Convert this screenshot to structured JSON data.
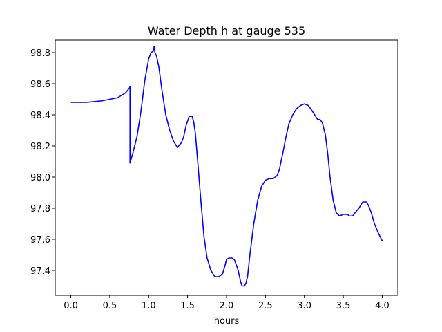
{
  "chart_data": {
    "type": "line",
    "title": "Water Depth h at gauge 535",
    "xlabel": "hours",
    "ylabel": "",
    "xlim": [
      -0.2,
      4.2
    ],
    "ylim": [
      97.24,
      98.88
    ],
    "xticks": [
      0.0,
      0.5,
      1.0,
      1.5,
      2.0,
      2.5,
      3.0,
      3.5,
      4.0
    ],
    "xtick_labels": [
      "0.0",
      "0.5",
      "1.0",
      "1.5",
      "2.0",
      "2.5",
      "3.0",
      "3.5",
      "4.0"
    ],
    "yticks": [
      97.4,
      97.6,
      97.8,
      98.0,
      98.2,
      98.4,
      98.6,
      98.8
    ],
    "ytick_labels": [
      "97.4",
      "97.6",
      "97.8",
      "98.0",
      "98.2",
      "98.4",
      "98.6",
      "98.8"
    ],
    "grid": false,
    "series": [
      {
        "color": "#0000ff",
        "x": [
          0.0,
          0.2,
          0.4,
          0.6,
          0.7,
          0.75,
          0.76,
          0.76,
          0.8,
          0.85,
          0.9,
          0.95,
          1.0,
          1.03,
          1.06,
          1.07,
          1.08,
          1.1,
          1.13,
          1.17,
          1.22,
          1.27,
          1.32,
          1.37,
          1.4,
          1.42,
          1.45,
          1.48,
          1.52,
          1.56,
          1.58,
          1.6,
          1.63,
          1.67,
          1.71,
          1.75,
          1.8,
          1.85,
          1.9,
          1.93,
          1.95,
          1.98,
          2.0,
          2.03,
          2.07,
          2.1,
          2.13,
          2.15,
          2.18,
          2.2,
          2.23,
          2.25,
          2.27,
          2.3,
          2.35,
          2.4,
          2.45,
          2.5,
          2.55,
          2.6,
          2.65,
          2.68,
          2.7,
          2.73,
          2.76,
          2.8,
          2.85,
          2.9,
          2.95,
          3.0,
          3.05,
          3.08,
          3.12,
          3.17,
          3.2,
          3.23,
          3.27,
          3.3,
          3.33,
          3.37,
          3.41,
          3.45,
          3.5,
          3.55,
          3.58,
          3.62,
          3.65,
          3.7,
          3.75,
          3.8,
          3.83,
          3.86,
          3.9,
          3.95,
          4.0
        ],
        "y": [
          98.48,
          98.48,
          98.49,
          98.51,
          98.54,
          98.57,
          98.58,
          98.09,
          98.16,
          98.26,
          98.42,
          98.62,
          98.76,
          98.8,
          98.81,
          98.84,
          98.8,
          98.78,
          98.71,
          98.56,
          98.4,
          98.3,
          98.23,
          98.19,
          98.21,
          98.22,
          98.26,
          98.33,
          98.39,
          98.39,
          98.35,
          98.28,
          98.1,
          97.85,
          97.62,
          97.48,
          97.4,
          97.36,
          97.36,
          97.37,
          97.38,
          97.43,
          97.47,
          97.48,
          97.48,
          97.47,
          97.43,
          97.4,
          97.33,
          97.3,
          97.3,
          97.32,
          97.36,
          97.5,
          97.7,
          97.85,
          97.94,
          97.98,
          97.99,
          97.99,
          98.01,
          98.05,
          98.1,
          98.17,
          98.25,
          98.34,
          98.4,
          98.44,
          98.46,
          98.47,
          98.46,
          98.44,
          98.41,
          98.37,
          98.37,
          98.35,
          98.27,
          98.15,
          98.0,
          97.85,
          97.77,
          97.75,
          97.76,
          97.76,
          97.75,
          97.75,
          97.77,
          97.8,
          97.84,
          97.84,
          97.81,
          97.77,
          97.7,
          97.64,
          97.59
        ]
      }
    ]
  }
}
